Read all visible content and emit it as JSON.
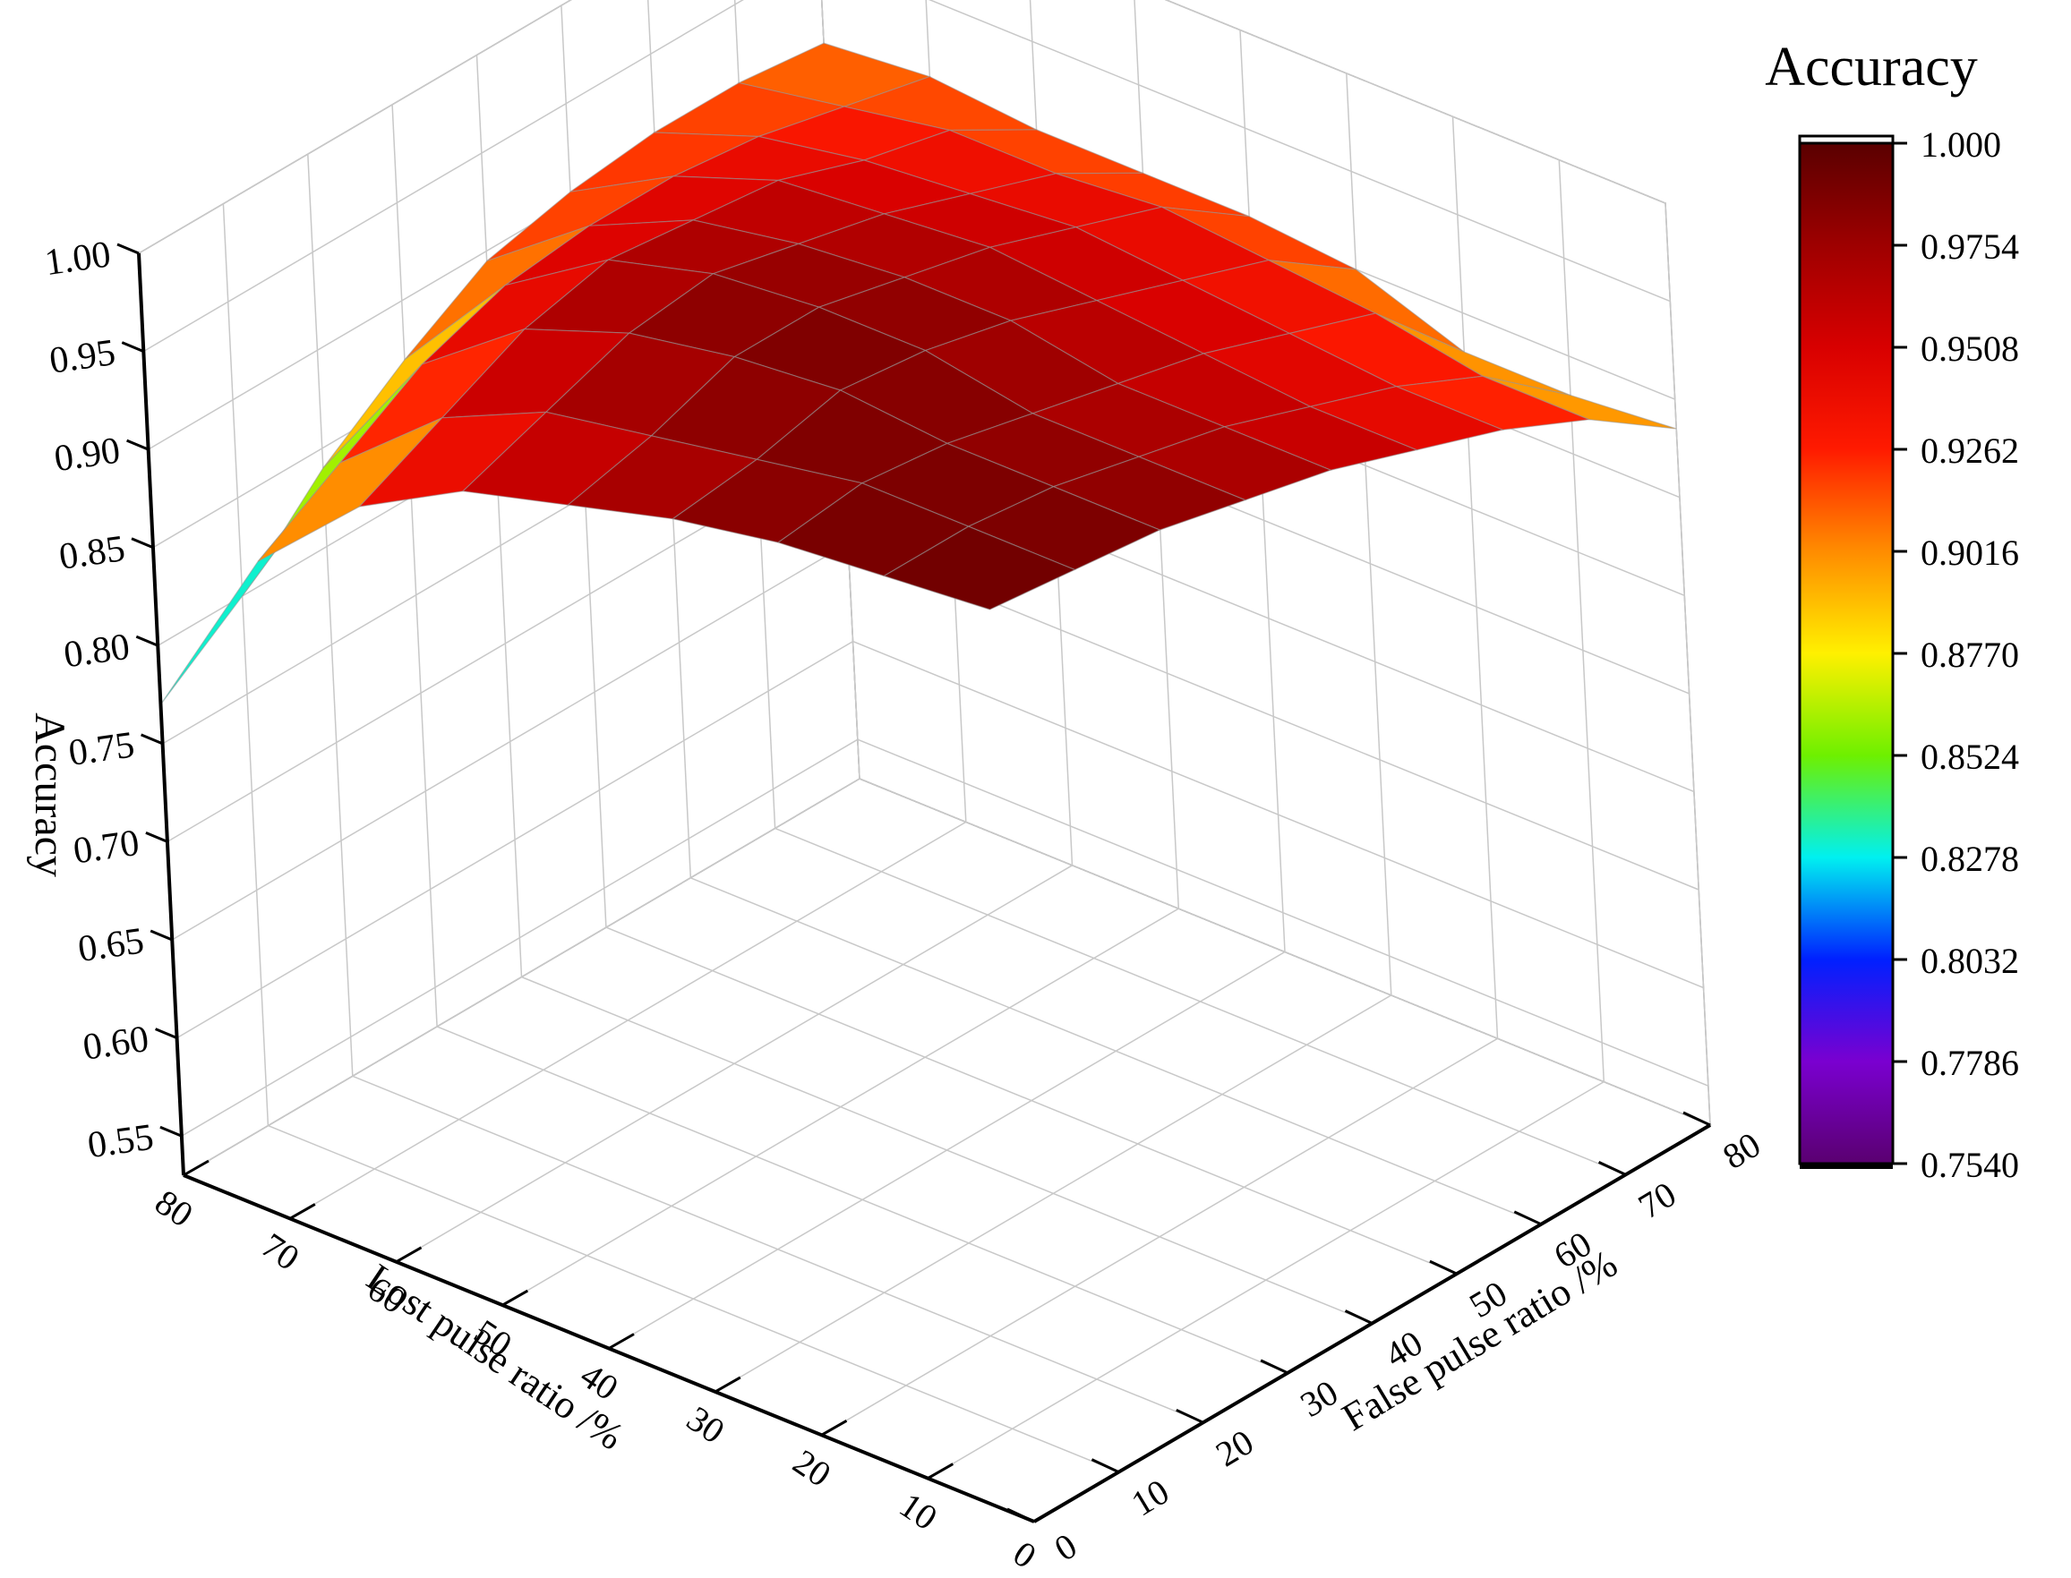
{
  "chart_data": {
    "type": "surface3d",
    "xlabel": "Lost pulse ratio /%",
    "ylabel": "False pulse ratio /%",
    "zlabel": "Accuracy",
    "x_ticks": [
      "0",
      "10",
      "20",
      "30",
      "40",
      "50",
      "60",
      "70",
      "80"
    ],
    "y_ticks": [
      "0",
      "10",
      "20",
      "30",
      "40",
      "50",
      "60",
      "70",
      "80"
    ],
    "z_ticks": [
      "0.55",
      "0.60",
      "0.65",
      "0.70",
      "0.75",
      "0.80",
      "0.85",
      "0.90",
      "0.95",
      "1.00"
    ],
    "xlim": [
      0,
      80
    ],
    "ylim": [
      0,
      80
    ],
    "zlim": [
      0.53,
      1.0
    ],
    "grid": true,
    "colorbar": {
      "title": "Accuracy",
      "range": [
        0.754,
        1.0
      ],
      "ticks": [
        "1.000",
        "0.9754",
        "0.9508",
        "0.9262",
        "0.9016",
        "0.8770",
        "0.8524",
        "0.8278",
        "0.8032",
        "0.7786",
        "0.7540"
      ],
      "colors": [
        "#5a0000",
        "#9e0000",
        "#d80000",
        "#ff1a00",
        "#ff8c00",
        "#fff000",
        "#6ef000",
        "#00f0f0",
        "#0020ff",
        "#7a00d0",
        "#5a0070"
      ]
    },
    "x": [
      0,
      10,
      20,
      30,
      40,
      50,
      60,
      70,
      80
    ],
    "y": [
      0,
      10,
      20,
      30,
      40,
      50,
      60,
      70,
      80
    ],
    "z": [
      [
        0.995,
        0.99,
        0.985,
        0.975,
        0.965,
        0.95,
        0.935,
        0.915,
        0.885
      ],
      [
        0.99,
        0.99,
        0.985,
        0.975,
        0.965,
        0.95,
        0.935,
        0.915,
        0.88
      ],
      [
        0.985,
        0.99,
        0.985,
        0.975,
        0.965,
        0.955,
        0.94,
        0.925,
        0.88
      ],
      [
        0.975,
        0.98,
        0.99,
        0.985,
        0.975,
        0.96,
        0.945,
        0.93,
        0.9
      ],
      [
        0.96,
        0.97,
        0.985,
        0.985,
        0.975,
        0.965,
        0.95,
        0.935,
        0.905
      ],
      [
        0.945,
        0.96,
        0.975,
        0.98,
        0.97,
        0.96,
        0.945,
        0.93,
        0.905
      ],
      [
        0.915,
        0.935,
        0.955,
        0.965,
        0.96,
        0.955,
        0.94,
        0.93,
        0.905
      ],
      [
        0.865,
        0.89,
        0.915,
        0.93,
        0.935,
        0.935,
        0.93,
        0.92,
        0.91
      ],
      [
        0.77,
        0.8,
        0.84,
        0.87,
        0.895,
        0.905,
        0.91,
        0.91,
        0.905
      ]
    ]
  }
}
